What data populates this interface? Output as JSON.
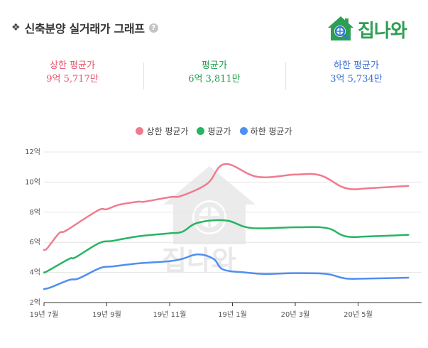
{
  "header": {
    "diamond": "❖",
    "title": "신축분양 실거래가 그래프",
    "help": "?"
  },
  "logo": {
    "text": "집나와",
    "colors": {
      "green": "#2e9e54",
      "blue": "#2b7bd6"
    }
  },
  "stats": [
    {
      "label": "상한 평균가",
      "value": "9억 5,717만",
      "color": "#e8536b"
    },
    {
      "label": "평균가",
      "value": "6억 3,811만",
      "color": "#1e9e4a"
    },
    {
      "label": "하한 평균가",
      "value": "3억 5,734만",
      "color": "#3b6fd1"
    }
  ],
  "chart_data": {
    "type": "line",
    "x_ticks": [
      "19년 7월",
      "19년 9월",
      "19년 11월",
      "19년 1월",
      "20년 3월",
      "20년 5월"
    ],
    "ylim": [
      2,
      12
    ],
    "y_ticks": [
      "2억",
      "4억",
      "6억",
      "8억",
      "10억",
      "12억"
    ],
    "grid": "horizontal",
    "legend_position": "top-center",
    "series": [
      {
        "name": "상한 평균가",
        "color": "#f07b8e",
        "x": [
          0,
          0.05,
          0.24,
          0.36,
          0.85,
          1.0,
          1.2,
          1.5,
          1.6,
          2.0,
          2.2,
          2.6,
          2.88,
          3.4,
          4.0,
          4.4,
          4.8,
          5.2,
          5.8
        ],
        "values": [
          5.5,
          5.6,
          6.6,
          6.8,
          8.1,
          8.2,
          8.5,
          8.7,
          8.7,
          9.0,
          9.1,
          9.9,
          11.2,
          10.35,
          10.5,
          10.45,
          9.6,
          9.6,
          9.75
        ]
      },
      {
        "name": "평균가",
        "color": "#28b463",
        "x": [
          0,
          0.06,
          0.4,
          0.5,
          0.88,
          1.1,
          1.5,
          2.0,
          2.2,
          2.45,
          2.9,
          3.3,
          4.0,
          4.5,
          4.8,
          5.2,
          5.8
        ],
        "values": [
          4.0,
          4.1,
          4.9,
          5.0,
          5.95,
          6.1,
          6.4,
          6.6,
          6.7,
          7.3,
          7.45,
          6.95,
          7.0,
          6.95,
          6.4,
          6.4,
          6.5
        ]
      },
      {
        "name": "하한 평균가",
        "color": "#4f8ef2",
        "x": [
          0,
          0.1,
          0.4,
          0.55,
          0.9,
          1.1,
          1.5,
          2.0,
          2.2,
          2.45,
          2.7,
          2.85,
          3.2,
          3.5,
          4.0,
          4.5,
          4.8,
          5.2,
          5.8
        ],
        "values": [
          2.9,
          3.0,
          3.5,
          3.6,
          4.3,
          4.4,
          4.6,
          4.75,
          4.9,
          5.2,
          4.9,
          4.2,
          4.0,
          3.9,
          3.95,
          3.9,
          3.6,
          3.6,
          3.65
        ]
      }
    ]
  }
}
